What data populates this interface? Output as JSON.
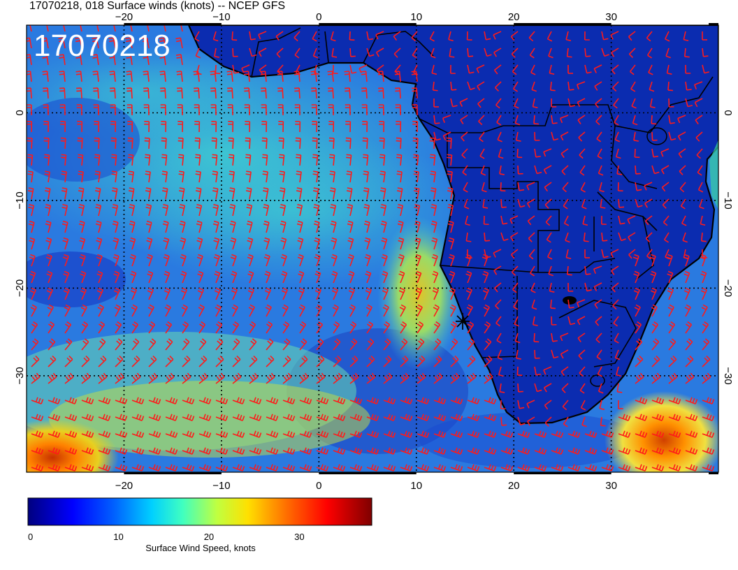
{
  "figure": {
    "title": "17070218, 018 Surface winds (knots) -- NCEP GFS",
    "stamp": "17070218"
  },
  "map": {
    "lon_range": [
      -30,
      41
    ],
    "lat_range": [
      -41,
      10
    ],
    "lon_ticks": [
      {
        "value": -20,
        "label": "−20"
      },
      {
        "value": -10,
        "label": "−10"
      },
      {
        "value": 0,
        "label": "0"
      },
      {
        "value": 10,
        "label": "10"
      },
      {
        "value": 20,
        "label": "20"
      },
      {
        "value": 30,
        "label": "30"
      }
    ],
    "lat_ticks": [
      {
        "value": 0,
        "label": "0"
      },
      {
        "value": -10,
        "label": "−10"
      },
      {
        "value": -20,
        "label": "−20"
      },
      {
        "value": -30,
        "label": "−30"
      }
    ],
    "colors": {
      "ocean_background": "#1a6fd6",
      "land": "#0a2fb8",
      "coastline": "#000000",
      "wind_barbs": "#ff1a1a",
      "grid": "#000000"
    },
    "wind_speed_regions": [
      {
        "region": "tropical Atlantic trades",
        "speed_kt": 14
      },
      {
        "region": "Namibia / Angola coastal jet",
        "speed_kt": 22
      },
      {
        "region": "Southwest corner (~37S, 29W)",
        "speed_kt": 30
      },
      {
        "region": "Off South Africa south-east (~37S, 37E)",
        "speed_kt": 28
      },
      {
        "region": "Africa interior",
        "speed_kt": 3
      }
    ]
  },
  "colorbar": {
    "label": "Surface Wind Speed, knots",
    "range": [
      0,
      38
    ],
    "ticks": [
      {
        "value": 0,
        "label": "0"
      },
      {
        "value": 10,
        "label": "10"
      },
      {
        "value": 20,
        "label": "20"
      },
      {
        "value": 30,
        "label": "30"
      }
    ],
    "colors": [
      "#00007f",
      "#0000ff",
      "#0080ff",
      "#00ffff",
      "#80ff80",
      "#ffff00",
      "#ff8000",
      "#ff0000",
      "#7f0000"
    ]
  }
}
